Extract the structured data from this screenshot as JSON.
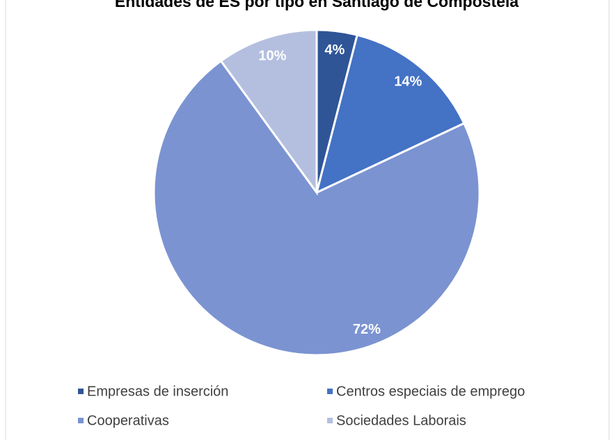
{
  "chart_data": {
    "type": "pie",
    "title": "Entidades de ES por tipo en Santiago de Compostela",
    "categories": [
      "Empresas de inserción",
      "Centros especiais de emprego",
      "Cooperativas",
      "Sociedades Laborais"
    ],
    "values": [
      4,
      14,
      72,
      10
    ],
    "value_labels": [
      "4%",
      "14%",
      "72%",
      "10%"
    ],
    "colors": [
      "#2f5597",
      "#4472c4",
      "#7b93d1",
      "#b4bfe0"
    ],
    "legend": "bottom"
  }
}
